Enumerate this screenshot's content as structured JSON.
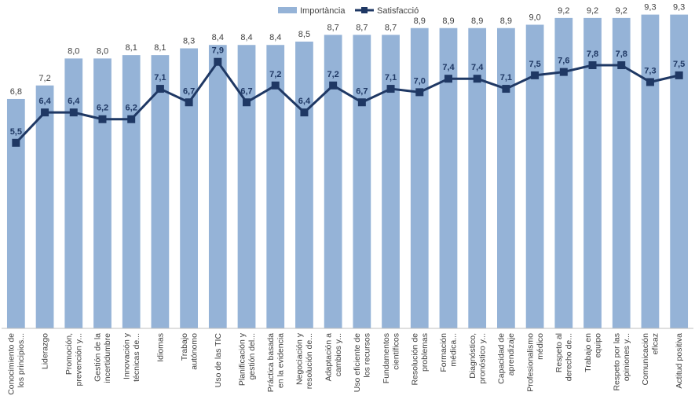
{
  "chart_data": {
    "type": "bar",
    "title": "",
    "xlabel": "",
    "ylabel": "",
    "ylim": [
      0,
      9.5
    ],
    "legend_position": "top-center",
    "grid": false,
    "categories": [
      [
        "Conocimiento de",
        "los principios..."
      ],
      [
        "Liderazgo"
      ],
      [
        "Promoción,",
        "prevención y..."
      ],
      [
        "Gestión de la",
        "incertidumbre"
      ],
      [
        "Innovación y",
        "técnicas de..."
      ],
      [
        "Idiomas"
      ],
      [
        "Trabajo",
        "autónomo"
      ],
      [
        "Uso de las TIC"
      ],
      [
        "Planificación y",
        "gestión del..."
      ],
      [
        "Práctica basada",
        "en la evidencia"
      ],
      [
        "Negociación y",
        "resolución de..."
      ],
      [
        "Adaptación a",
        "cambios y..."
      ],
      [
        "Uso eficiente de",
        "los recursos"
      ],
      [
        "Fundamentos",
        "científicos"
      ],
      [
        "Resolución de",
        "problemas"
      ],
      [
        "Formación",
        "médica..."
      ],
      [
        "Diagnóstico,",
        "pronóstico y..."
      ],
      [
        "Capacidad de",
        "aprendizaje"
      ],
      [
        "Profesionalismo",
        "médico"
      ],
      [
        "Respeto al",
        "derecho de..."
      ],
      [
        "Trabajo en",
        "equipo"
      ],
      [
        "Respeto por las",
        "opiniones y..."
      ],
      [
        "Comunicación",
        "eficaz"
      ],
      [
        "Actitud positiva"
      ]
    ],
    "series": [
      {
        "name": "Importància",
        "kind": "bar",
        "color": "#95b3d7",
        "values": [
          6.8,
          7.2,
          8.0,
          8.0,
          8.1,
          8.1,
          8.3,
          8.4,
          8.4,
          8.4,
          8.5,
          8.7,
          8.7,
          8.7,
          8.9,
          8.9,
          8.9,
          8.9,
          9.0,
          9.2,
          9.2,
          9.2,
          9.3,
          9.3
        ],
        "labels": [
          "6,8",
          "7,2",
          "8,0",
          "8,0",
          "8,1",
          "8,1",
          "8,3",
          "8,4",
          "8,4",
          "8,4",
          "8,5",
          "8,7",
          "8,7",
          "8,7",
          "8,9",
          "8,9",
          "8,9",
          "8,9",
          "9,0",
          "9,2",
          "9,2",
          "9,2",
          "9,3",
          "9,3"
        ]
      },
      {
        "name": "Satisfacció",
        "kind": "line",
        "color": "#1f3864",
        "values": [
          5.5,
          6.4,
          6.4,
          6.2,
          6.2,
          7.1,
          6.7,
          7.9,
          6.7,
          7.2,
          6.4,
          7.2,
          6.7,
          7.1,
          7.0,
          7.4,
          7.4,
          7.1,
          7.5,
          7.6,
          7.8,
          7.8,
          7.3,
          7.5
        ],
        "labels": [
          "5,5",
          "6,4",
          "6,4",
          "6,2",
          "6,2",
          "7,1",
          "6,7",
          "7,9",
          "6,7",
          "7,2",
          "6,4",
          "7,2",
          "6,7",
          "7,1",
          "7,0",
          "7,4",
          "7,4",
          "7,1",
          "7,5",
          "7,6",
          "7,8",
          "7,8",
          "7,3",
          "7,5"
        ]
      }
    ]
  }
}
